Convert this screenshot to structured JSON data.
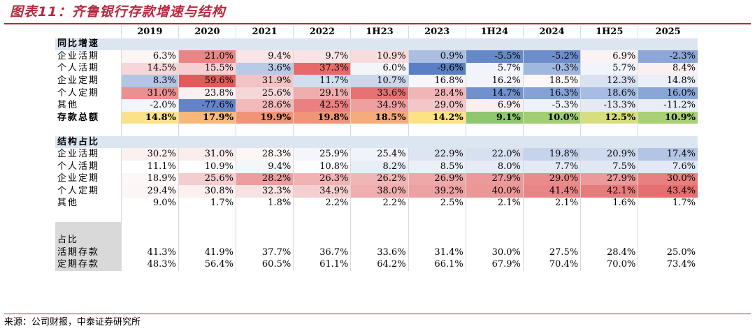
{
  "title": "图表11：齐鲁银行存款增速与结构",
  "source": "来源：公司财报，中泰证券研究所",
  "colors": {
    "title_red": "#b8283c",
    "section_blue": "#dce6f1",
    "gray_label": "#d9d9d9"
  },
  "header": [
    "2019",
    "2020",
    "2021",
    "2022",
    "1H23",
    "2023",
    "1H24",
    "2024",
    "1H25",
    "2025"
  ],
  "rows": [
    {
      "label": "同比增速",
      "type": "section"
    },
    {
      "label": "企业活期",
      "values": [
        "6.3%",
        "21.0%",
        "9.4%",
        "9.7%",
        "10.9%",
        "0.9%",
        "-5.5%",
        "-5.2%",
        "6.9%",
        "-2.3%"
      ],
      "colors": [
        "#fdf4f4",
        "#eb8585",
        "#fae5e6",
        "#f9e4e5",
        "#f9dcdd",
        "#a9bee0",
        "#6588c8",
        "#6d8dcb",
        "#fbf2f3",
        "#8ba6d7"
      ]
    },
    {
      "label": "个人活期",
      "values": [
        "14.5%",
        "15.5%",
        "3.6%",
        "37.3%",
        "6.0%",
        "-9.6%",
        "5.7%",
        "-0.3%",
        "5.7%",
        "8.4%"
      ],
      "colors": [
        "#f7d6d7",
        "#f6cfd1",
        "#b8cae6",
        "#e76a6b",
        "#f3f5fb",
        "#5a7fc3",
        "#f1f4fb",
        "#a1b8de",
        "#f1f4fb",
        "#fbf0f1"
      ]
    },
    {
      "label": "企业定期",
      "values": [
        "8.3%",
        "59.6%",
        "31.9%",
        "11.7%",
        "10.7%",
        "16.8%",
        "16.2%",
        "18.5%",
        "12.3%",
        "14.8%"
      ],
      "colors": [
        "#b1c5e4",
        "#e35a5b",
        "#f2c3c4",
        "#d2ddf0",
        "#cad7ed",
        "#f6f7fb",
        "#f2f4fa",
        "#fdf6f6",
        "#d9e2f2",
        "#eaeff8"
      ]
    },
    {
      "label": "个人定期",
      "values": [
        "31.0%",
        "23.8%",
        "25.6%",
        "29.1%",
        "33.6%",
        "28.4%",
        "14.7%",
        "16.3%",
        "18.6%",
        "16.0%"
      ],
      "colors": [
        "#eb9091",
        "#fbf0f0",
        "#f6d7d8",
        "#efadae",
        "#e67273",
        "#f0b6b7",
        "#6f91cd",
        "#85a1d6",
        "#a6bce0",
        "#8aa5d8"
      ]
    },
    {
      "label": "其他",
      "values": [
        "-2.0%",
        "-77.6%",
        "28.6%",
        "42.5%",
        "34.9%",
        "29.0%",
        "6.9%",
        "-5.3%",
        "-13.3%",
        "-11.2%"
      ],
      "colors": [
        "#f2f5fa",
        "#6385c7",
        "#f1b9ba",
        "#ea8081",
        "#ee9fa0",
        "#f3c6c7",
        "#fbeeee",
        "#eef2f9",
        "#e4eaf5",
        "#e8edf7"
      ]
    },
    {
      "label": "存款总额",
      "type": "bold",
      "values": [
        "14.8%",
        "17.9%",
        "19.9%",
        "19.8%",
        "18.5%",
        "14.2%",
        "9.1%",
        "10.0%",
        "12.5%",
        "10.9%"
      ],
      "colors": [
        "#fbe28a",
        "#f8b87a",
        "#f09377",
        "#f09577",
        "#f6ac7a",
        "#fbe384",
        "#8ec76e",
        "#a2ce72",
        "#d6de7e",
        "#a9d072"
      ]
    },
    {
      "type": "spacer"
    },
    {
      "label": "结构占比",
      "type": "section"
    },
    {
      "label": "企业活期",
      "values": [
        "30.2%",
        "31.0%",
        "28.3%",
        "25.9%",
        "25.4%",
        "22.9%",
        "22.0%",
        "19.8%",
        "20.9%",
        "17.4%"
      ],
      "colors": [
        "#fbf1f1",
        "#fbeced",
        "#fdf6f6",
        "#f4f6fb",
        "#f0f3fa",
        "#dde5f3",
        "#d7e0f1",
        "#c5d3eb",
        "#ced9ee",
        "#b2c5e4"
      ]
    },
    {
      "label": "个人活期",
      "values": [
        "11.1%",
        "10.9%",
        "9.4%",
        "10.8%",
        "8.2%",
        "8.5%",
        "8.0%",
        "7.7%",
        "7.5%",
        "7.6%"
      ],
      "colors": [
        "#ffffff",
        "#ffffff",
        "#f4f6fb",
        "#fdfdfe",
        "#e8edf7",
        "#eaeff8",
        "#e6ebf6",
        "#e3e9f5",
        "#e1e8f4",
        "#e2e8f5"
      ]
    },
    {
      "label": "企业定期",
      "values": [
        "18.9%",
        "25.6%",
        "28.2%",
        "26.3%",
        "26.2%",
        "26.9%",
        "27.9%",
        "29.0%",
        "27.9%",
        "30.0%"
      ],
      "colors": [
        "#fdf7f7",
        "#f4cdce",
        "#ec9d9e",
        "#f0b3b4",
        "#f0b5b6",
        "#eea8a9",
        "#eb999a",
        "#e98b8c",
        "#eb999a",
        "#e87f80"
      ]
    },
    {
      "label": "个人定期",
      "values": [
        "29.4%",
        "30.8%",
        "32.3%",
        "34.9%",
        "38.0%",
        "39.2%",
        "40.0%",
        "41.4%",
        "42.1%",
        "43.4%"
      ],
      "colors": [
        "#fdf6f6",
        "#fcf0f0",
        "#f9e2e3",
        "#f5cfd0",
        "#f0aeaf",
        "#eea1a2",
        "#ec9797",
        "#e98586",
        "#e77c7d",
        "#e56e6f"
      ]
    },
    {
      "label": "其他",
      "values": [
        "9.0%",
        "1.7%",
        "1.8%",
        "2.2%",
        "2.2%",
        "2.5%",
        "2.1%",
        "2.1%",
        "1.6%",
        "1.7%"
      ],
      "colors": [
        "#ffffff",
        "#ffffff",
        "#ffffff",
        "#ffffff",
        "#ffffff",
        "#ffffff",
        "#ffffff",
        "#ffffff",
        "#ffffff",
        "#ffffff"
      ]
    },
    {
      "type": "spacer"
    },
    {
      "type": "spacer",
      "gray": true
    },
    {
      "label": "占比",
      "type": "secg"
    },
    {
      "label": "活期存款",
      "type": "gray",
      "values": [
        "41.3%",
        "41.9%",
        "37.7%",
        "36.7%",
        "33.6%",
        "31.4%",
        "30.0%",
        "27.5%",
        "28.4%",
        "25.0%"
      ]
    },
    {
      "label": "定期存款",
      "type": "gray",
      "values": [
        "48.3%",
        "56.4%",
        "60.5%",
        "61.1%",
        "64.2%",
        "66.1%",
        "67.9%",
        "70.4%",
        "70.0%",
        "73.4%"
      ]
    }
  ]
}
